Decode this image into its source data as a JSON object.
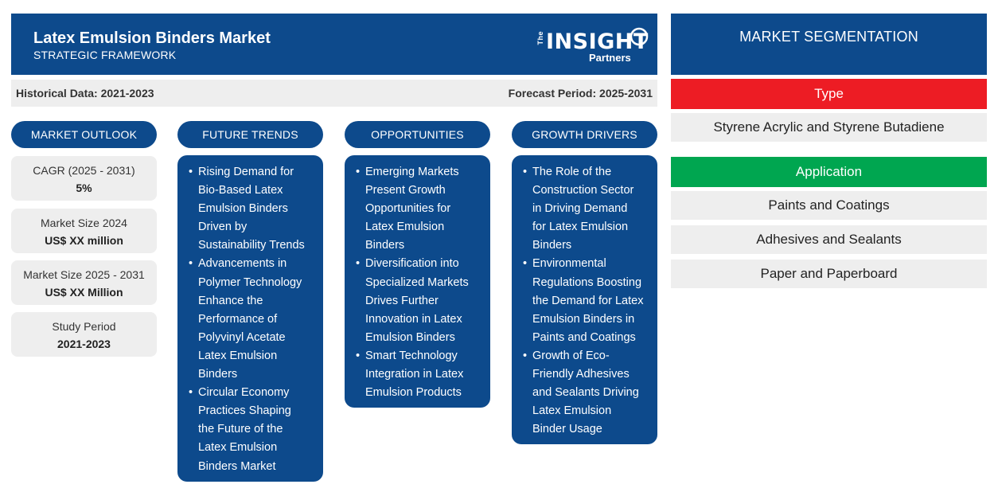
{
  "header": {
    "title": "Latex Emulsion Binders Market",
    "subtitle": "STRATEGIC FRAMEWORK",
    "logo": {
      "the": "The",
      "insight": "INSIGHT",
      "partners": "Partners"
    }
  },
  "period_bar": {
    "historical": "Historical Data: 2021-2023",
    "forecast": "Forecast Period: 2025-2031"
  },
  "columns": {
    "market_outlook": "MARKET OUTLOOK",
    "future_trends": "FUTURE TRENDS",
    "opportunities": "OPPORTUNITIES",
    "growth_drivers": "GROWTH DRIVERS"
  },
  "outlook": [
    {
      "label": "CAGR (2025 - 2031)",
      "value": "5%"
    },
    {
      "label": "Market Size 2024",
      "value": "US$ XX million"
    },
    {
      "label": "Market Size 2025 - 2031",
      "value": "US$ XX Million"
    },
    {
      "label": "Study Period",
      "value": "2021-2023"
    }
  ],
  "future_trends": [
    [
      "Rising Demand for",
      "Bio-Based Latex",
      "Emulsion Binders",
      "Driven by",
      "Sustainability Trends"
    ],
    [
      "Advancements in",
      "Polymer Technology",
      "Enhance the",
      "Performance of",
      "Polyvinyl Acetate",
      "Latex Emulsion",
      "Binders"
    ],
    [
      "Circular Economy",
      "Practices Shaping",
      "the Future of the",
      "Latex Emulsion",
      "Binders Market"
    ]
  ],
  "opportunities": [
    [
      "Emerging Markets",
      "Present Growth",
      "Opportunities for",
      "Latex Emulsion",
      "Binders"
    ],
    [
      "Diversification into",
      "Specialized Markets",
      "Drives Further",
      "Innovation in Latex",
      "Emulsion Binders"
    ],
    [
      "Smart Technology",
      "Integration in Latex",
      "Emulsion Products"
    ]
  ],
  "growth_drivers": [
    [
      "The Role of the",
      "Construction Sector",
      "in Driving Demand",
      "for Latex Emulsion",
      "Binders"
    ],
    [
      "Environmental",
      "Regulations Boosting",
      "the Demand for Latex",
      "Emulsion Binders in",
      "Paints and Coatings"
    ],
    [
      "Growth of Eco-",
      "Friendly Adhesives",
      "and Sealants Driving",
      "Latex Emulsion",
      "Binder Usage"
    ]
  ],
  "segmentation": {
    "title": "MARKET SEGMENTATION",
    "type": {
      "label": "Type",
      "color": "#ed1c24",
      "items": [
        "Styrene Acrylic and Styrene Butadiene"
      ]
    },
    "application": {
      "label": "Application",
      "color": "#00a650",
      "items": [
        "Paints and Coatings",
        "Adhesives and Sealants",
        "Paper and Paperboard"
      ]
    }
  },
  "colors": {
    "primary": "#0d4a8c",
    "panel": "#eeeeee"
  }
}
